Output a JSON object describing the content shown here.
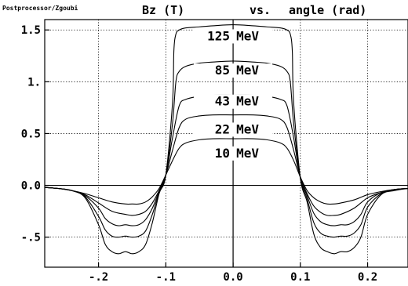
{
  "header": {
    "brand": "Postprocessor/Zgoubi",
    "title_left": "Bz (T)",
    "title_mid": "vs.",
    "title_right": "angle (rad)"
  },
  "chart_data": {
    "type": "line",
    "title": "Bz (T)   vs.   angle (rad)",
    "xlabel": "angle (rad)",
    "ylabel": "Bz (T)",
    "xlim": [
      -0.28,
      0.26
    ],
    "ylim": [
      -0.79,
      1.6
    ],
    "grid": true,
    "x_ticks": [
      {
        "value": -0.2,
        "label": "-.2"
      },
      {
        "value": -0.1,
        "label": "-.1"
      },
      {
        "value": 0.0,
        "label": "0.0"
      },
      {
        "value": 0.1,
        "label": "0.1"
      },
      {
        "value": 0.2,
        "label": "0.2"
      }
    ],
    "y_ticks": [
      {
        "value": 1.5,
        "label": "1.5"
      },
      {
        "value": 1.0,
        "label": "1."
      },
      {
        "value": 0.5,
        "label": "0.5"
      },
      {
        "value": 0.0,
        "label": "0.0"
      },
      {
        "value": -0.5,
        "label": "-.5"
      }
    ],
    "series": [
      {
        "name": "10 MeV",
        "label_y": 0.27,
        "x": [
          -0.28,
          -0.26,
          -0.24,
          -0.22,
          -0.2,
          -0.18,
          -0.16,
          -0.15,
          -0.14,
          -0.13,
          -0.12,
          -0.11,
          -0.1,
          -0.09,
          -0.08,
          -0.07,
          -0.05,
          -0.03,
          0.0,
          0.03,
          0.05,
          0.07,
          0.08,
          0.09,
          0.1,
          0.11,
          0.12,
          0.13,
          0.14,
          0.15,
          0.16,
          0.18,
          0.2,
          0.22,
          0.24,
          0.26
        ],
        "values": [
          -0.02,
          -0.03,
          -0.05,
          -0.08,
          -0.12,
          -0.16,
          -0.18,
          -0.18,
          -0.18,
          -0.16,
          -0.11,
          -0.03,
          0.1,
          0.24,
          0.36,
          0.41,
          0.44,
          0.45,
          0.45,
          0.45,
          0.44,
          0.41,
          0.36,
          0.24,
          0.08,
          -0.05,
          -0.12,
          -0.16,
          -0.18,
          -0.18,
          -0.17,
          -0.14,
          -0.09,
          -0.06,
          -0.04,
          -0.03
        ]
      },
      {
        "name": "22 MeV",
        "label_y": 0.5,
        "x": [
          -0.28,
          -0.26,
          -0.24,
          -0.22,
          -0.2,
          -0.18,
          -0.16,
          -0.15,
          -0.14,
          -0.13,
          -0.12,
          -0.11,
          -0.1,
          -0.09,
          -0.08,
          -0.07,
          -0.05,
          -0.03,
          0.0,
          0.03,
          0.05,
          0.07,
          0.08,
          0.09,
          0.1,
          0.11,
          0.12,
          0.13,
          0.14,
          0.15,
          0.16,
          0.18,
          0.2,
          0.22,
          0.24,
          0.26
        ],
        "values": [
          -0.02,
          -0.03,
          -0.05,
          -0.09,
          -0.17,
          -0.25,
          -0.28,
          -0.29,
          -0.28,
          -0.25,
          -0.17,
          -0.05,
          0.1,
          0.34,
          0.56,
          0.64,
          0.67,
          0.68,
          0.68,
          0.68,
          0.67,
          0.64,
          0.56,
          0.34,
          0.08,
          -0.08,
          -0.2,
          -0.26,
          -0.29,
          -0.29,
          -0.28,
          -0.22,
          -0.12,
          -0.07,
          -0.04,
          -0.03
        ]
      },
      {
        "name": "43 MeV",
        "label_y": 0.77,
        "x": [
          -0.28,
          -0.26,
          -0.24,
          -0.22,
          -0.2,
          -0.19,
          -0.18,
          -0.17,
          -0.16,
          -0.15,
          -0.14,
          -0.13,
          -0.12,
          -0.11,
          -0.1,
          -0.09,
          -0.08,
          -0.07,
          -0.05,
          -0.03,
          0.0,
          0.03,
          0.05,
          0.07,
          0.08,
          0.09,
          0.1,
          0.11,
          0.12,
          0.13,
          0.14,
          0.15,
          0.16,
          0.17,
          0.18,
          0.19,
          0.2,
          0.22,
          0.24,
          0.26
        ],
        "values": [
          -0.02,
          -0.03,
          -0.05,
          -0.1,
          -0.22,
          -0.32,
          -0.37,
          -0.39,
          -0.38,
          -0.39,
          -0.38,
          -0.33,
          -0.22,
          -0.06,
          0.1,
          0.46,
          0.77,
          0.83,
          0.86,
          0.87,
          0.87,
          0.87,
          0.86,
          0.83,
          0.77,
          0.46,
          0.07,
          -0.1,
          -0.27,
          -0.35,
          -0.38,
          -0.39,
          -0.38,
          -0.38,
          -0.35,
          -0.28,
          -0.16,
          -0.07,
          -0.04,
          -0.03
        ]
      },
      {
        "name": "85 MeV",
        "label_y": 1.07,
        "x": [
          -0.28,
          -0.26,
          -0.24,
          -0.22,
          -0.2,
          -0.19,
          -0.18,
          -0.17,
          -0.16,
          -0.15,
          -0.14,
          -0.13,
          -0.12,
          -0.11,
          -0.1,
          -0.09,
          -0.085,
          -0.08,
          -0.07,
          -0.05,
          -0.03,
          0.0,
          0.03,
          0.05,
          0.07,
          0.08,
          0.085,
          0.09,
          0.1,
          0.11,
          0.12,
          0.13,
          0.14,
          0.15,
          0.16,
          0.17,
          0.18,
          0.19,
          0.2,
          0.22,
          0.24,
          0.26
        ],
        "values": [
          -0.02,
          -0.03,
          -0.05,
          -0.11,
          -0.3,
          -0.43,
          -0.49,
          -0.5,
          -0.49,
          -0.5,
          -0.49,
          -0.44,
          -0.28,
          -0.07,
          0.1,
          0.6,
          1.0,
          1.1,
          1.15,
          1.18,
          1.19,
          1.2,
          1.19,
          1.18,
          1.15,
          1.1,
          1.0,
          0.6,
          0.07,
          -0.13,
          -0.36,
          -0.46,
          -0.49,
          -0.5,
          -0.49,
          -0.49,
          -0.46,
          -0.38,
          -0.21,
          -0.08,
          -0.04,
          -0.03
        ]
      },
      {
        "name": "125 MeV",
        "label_y": 1.4,
        "x": [
          -0.28,
          -0.26,
          -0.24,
          -0.22,
          -0.2,
          -0.19,
          -0.18,
          -0.17,
          -0.16,
          -0.15,
          -0.14,
          -0.13,
          -0.12,
          -0.11,
          -0.1,
          -0.09,
          -0.088,
          -0.085,
          -0.08,
          -0.07,
          -0.05,
          -0.03,
          0.0,
          0.03,
          0.05,
          0.07,
          0.08,
          0.085,
          0.088,
          0.09,
          0.1,
          0.11,
          0.12,
          0.13,
          0.14,
          0.15,
          0.16,
          0.17,
          0.18,
          0.19,
          0.2,
          0.22,
          0.24,
          0.26
        ],
        "values": [
          -0.02,
          -0.03,
          -0.05,
          -0.12,
          -0.38,
          -0.57,
          -0.64,
          -0.66,
          -0.64,
          -0.66,
          -0.64,
          -0.57,
          -0.36,
          -0.08,
          0.1,
          0.8,
          1.3,
          1.46,
          1.5,
          1.52,
          1.53,
          1.54,
          1.55,
          1.54,
          1.53,
          1.52,
          1.5,
          1.46,
          1.3,
          0.8,
          0.07,
          -0.16,
          -0.47,
          -0.6,
          -0.64,
          -0.66,
          -0.64,
          -0.64,
          -0.6,
          -0.5,
          -0.28,
          -0.09,
          -0.05,
          -0.03
        ]
      }
    ]
  }
}
